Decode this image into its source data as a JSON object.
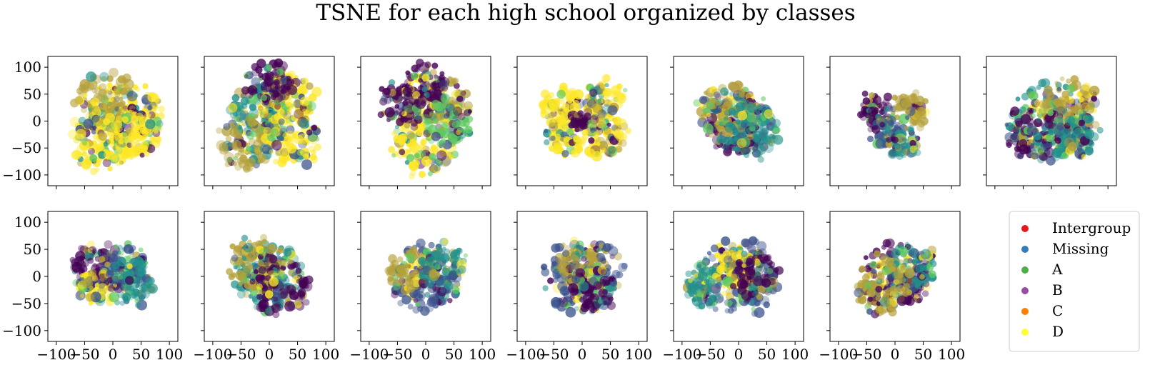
{
  "title": "TSNE for each high school organized by classes",
  "legend": {
    "placement": "right of bottom row",
    "entries": [
      {
        "label": "Intergroup",
        "color": "#e41a1c"
      },
      {
        "label": "Missing",
        "color": "#377eb8"
      },
      {
        "label": "A",
        "color": "#4daf4a"
      },
      {
        "label": "B",
        "color": "#984ea3"
      },
      {
        "label": "C",
        "color": "#ff7f00"
      },
      {
        "label": "D",
        "color": "#ffff33"
      }
    ]
  },
  "colors": {
    "dark_purple": "#440154",
    "indigo": "#3b528b",
    "teal": "#21918c",
    "green": "#5ec962",
    "yellow": "#fde725",
    "olive": "#b5a03a"
  },
  "chart_data": {
    "type": "scatter",
    "layout": "2 rows x 7 columns (13 panels + legend)",
    "xlim": [
      -115,
      115
    ],
    "ylim": [
      -120,
      120
    ],
    "yticks": [
      -100,
      -50,
      0,
      50,
      100
    ],
    "xticks": [
      -100,
      -50,
      0,
      50,
      100
    ],
    "ytick_labels": [
      "100",
      "50",
      "0",
      "−50",
      "−100"
    ],
    "xtick_labels": [
      "−100",
      "−50",
      "0",
      "50",
      "100"
    ],
    "grid": false,
    "shared_axes": true,
    "panels": [
      {
        "id": 1,
        "row": 1,
        "clusters": [
          [
            20,
            0,
            70,
            "yellow"
          ],
          [
            -10,
            40,
            50,
            "olive"
          ],
          [
            -20,
            -40,
            50,
            "yellow"
          ],
          [
            40,
            -20,
            40,
            "yellow"
          ]
        ]
      },
      {
        "id": 2,
        "row": 1,
        "clusters": [
          [
            -20,
            20,
            50,
            "teal"
          ],
          [
            30,
            40,
            50,
            "yellow"
          ],
          [
            -40,
            -40,
            50,
            "olive"
          ],
          [
            40,
            -30,
            50,
            "yellow"
          ],
          [
            0,
            70,
            40,
            "dark_purple"
          ]
        ]
      },
      {
        "id": 3,
        "row": 1,
        "clusters": [
          [
            0,
            -40,
            60,
            "yellow"
          ],
          [
            -40,
            30,
            40,
            "dark_purple"
          ],
          [
            30,
            40,
            40,
            "olive"
          ],
          [
            0,
            70,
            35,
            "dark_purple"
          ],
          [
            40,
            0,
            40,
            "green"
          ]
        ]
      },
      {
        "id": 4,
        "row": 1,
        "clusters": [
          [
            -40,
            30,
            35,
            "yellow"
          ],
          [
            40,
            40,
            35,
            "yellow"
          ],
          [
            -30,
            -30,
            35,
            "yellow"
          ],
          [
            40,
            -30,
            35,
            "yellow"
          ],
          [
            0,
            0,
            15,
            "dark_purple"
          ]
        ]
      },
      {
        "id": 5,
        "row": 1,
        "clusters": [
          [
            0,
            0,
            60,
            "dark_purple"
          ],
          [
            -20,
            20,
            50,
            "olive"
          ],
          [
            20,
            -20,
            50,
            "teal"
          ]
        ]
      },
      {
        "id": 6,
        "row": 1,
        "clusters": [
          [
            -30,
            20,
            30,
            "dark_purple"
          ],
          [
            30,
            20,
            30,
            "olive"
          ],
          [
            -15,
            -20,
            25,
            "indigo"
          ],
          [
            15,
            -40,
            25,
            "teal"
          ]
        ]
      },
      {
        "id": 7,
        "row": 1,
        "clusters": [
          [
            0,
            0,
            70,
            "teal"
          ],
          [
            30,
            30,
            50,
            "olive"
          ],
          [
            -30,
            -20,
            50,
            "dark_purple"
          ],
          [
            40,
            -30,
            40,
            "teal"
          ]
        ]
      },
      {
        "id": 8,
        "row": 2,
        "clusters": [
          [
            -30,
            20,
            40,
            "dark_purple"
          ],
          [
            20,
            20,
            40,
            "indigo"
          ],
          [
            -30,
            -20,
            30,
            "yellow"
          ],
          [
            30,
            -10,
            40,
            "teal"
          ]
        ]
      },
      {
        "id": 9,
        "row": 2,
        "clusters": [
          [
            0,
            0,
            60,
            "teal"
          ],
          [
            -20,
            20,
            50,
            "olive"
          ],
          [
            20,
            -20,
            50,
            "dark_purple"
          ]
        ]
      },
      {
        "id": 10,
        "row": 2,
        "clusters": [
          [
            0,
            0,
            60,
            "indigo"
          ],
          [
            -30,
            10,
            40,
            "olive"
          ],
          [
            30,
            20,
            40,
            "teal"
          ]
        ]
      },
      {
        "id": 11,
        "row": 2,
        "clusters": [
          [
            0,
            0,
            70,
            "indigo"
          ],
          [
            0,
            20,
            40,
            "olive"
          ],
          [
            20,
            -20,
            40,
            "dark_purple"
          ]
        ]
      },
      {
        "id": 12,
        "row": 2,
        "clusters": [
          [
            0,
            0,
            70,
            "indigo"
          ],
          [
            -60,
            -20,
            35,
            "teal"
          ],
          [
            0,
            10,
            40,
            "yellow"
          ],
          [
            30,
            0,
            40,
            "dark_purple"
          ]
        ]
      },
      {
        "id": 13,
        "row": 2,
        "clusters": [
          [
            0,
            0,
            60,
            "dark_purple"
          ],
          [
            30,
            20,
            40,
            "teal"
          ],
          [
            -20,
            -20,
            50,
            "olive"
          ]
        ]
      }
    ]
  }
}
